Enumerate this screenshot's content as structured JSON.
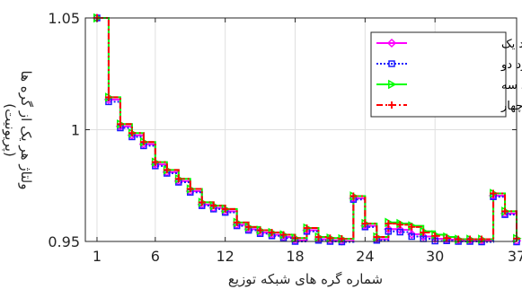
{
  "chart_data": {
    "type": "line",
    "title": "",
    "xlabel": "شماره گره های شبکه توزیع",
    "ylabel": "ولتاژ هر یک از گره ها",
    "ylabel_unit": "(پریونیت)",
    "xlim": [
      0,
      37
    ],
    "ylim": [
      0.95,
      1.05
    ],
    "xticks": [
      1,
      6,
      12,
      18,
      24,
      30,
      37
    ],
    "yticks": [
      0.95,
      1,
      1.05
    ],
    "ytick_labels": [
      "0.95",
      "1",
      "1.05"
    ],
    "grid": true,
    "step": true,
    "legend_position": "top-right",
    "x": [
      1,
      2,
      3,
      4,
      5,
      6,
      7,
      8,
      9,
      10,
      11,
      12,
      13,
      14,
      15,
      16,
      17,
      18,
      19,
      20,
      21,
      22,
      23,
      24,
      25,
      26,
      27,
      28,
      29,
      30,
      31,
      32,
      33,
      34,
      35,
      36,
      37
    ],
    "series": [
      {
        "name": "مورد یک",
        "color": "#ff00ff",
        "marker": "diamond",
        "dash": "solid",
        "values": [
          1.05,
          1.0135,
          1.0015,
          0.9975,
          0.9935,
          0.9845,
          0.981,
          0.977,
          0.9725,
          0.9665,
          0.965,
          0.9635,
          0.9575,
          0.9555,
          0.954,
          0.953,
          0.952,
          0.9505,
          0.955,
          0.951,
          0.9505,
          0.9502,
          0.9693,
          0.957,
          0.951,
          0.9555,
          0.9552,
          0.9532,
          0.9522,
          0.9512,
          0.9508,
          0.9505,
          0.9505,
          0.9503,
          0.9705,
          0.9625,
          0.9503
        ]
      },
      {
        "name": "مورد دو",
        "color": "#1a1aff",
        "marker": "square",
        "dash": "dotted",
        "values": [
          1.05,
          1.0125,
          1.0008,
          0.9968,
          0.9928,
          0.9838,
          0.9805,
          0.9765,
          0.972,
          0.966,
          0.9645,
          0.963,
          0.957,
          0.955,
          0.9535,
          0.9525,
          0.9515,
          0.95,
          0.9545,
          0.9505,
          0.95,
          0.9498,
          0.9688,
          0.9565,
          0.9505,
          0.9545,
          0.9542,
          0.9522,
          0.9512,
          0.9502,
          0.9503,
          0.95,
          0.95,
          0.9498,
          0.97,
          0.962,
          0.9498
        ]
      },
      {
        "name": "مورد سه",
        "color": "#00ff00",
        "marker": "triangle-right",
        "dash": "solid",
        "values": [
          1.05,
          1.0145,
          1.0025,
          0.9985,
          0.9945,
          0.9855,
          0.982,
          0.978,
          0.9735,
          0.9675,
          0.966,
          0.9645,
          0.9585,
          0.9565,
          0.955,
          0.954,
          0.953,
          0.9515,
          0.956,
          0.952,
          0.9515,
          0.9512,
          0.9703,
          0.958,
          0.952,
          0.9585,
          0.958,
          0.957,
          0.9545,
          0.953,
          0.952,
          0.951,
          0.951,
          0.951,
          0.9715,
          0.9635,
          0.9513
        ]
      },
      {
        "name": "مورد چهار",
        "color": "#ff0000",
        "marker": "plus",
        "dash": "dashdot",
        "values": [
          1.05,
          1.0145,
          1.0025,
          0.9985,
          0.9945,
          0.9855,
          0.982,
          0.978,
          0.9735,
          0.9675,
          0.966,
          0.9645,
          0.9585,
          0.9565,
          0.955,
          0.954,
          0.953,
          0.9515,
          0.956,
          0.952,
          0.9515,
          0.9512,
          0.9703,
          0.958,
          0.952,
          0.958,
          0.9575,
          0.9565,
          0.954,
          0.9525,
          0.9515,
          0.951,
          0.951,
          0.951,
          0.9715,
          0.9635,
          0.9513
        ]
      }
    ]
  }
}
